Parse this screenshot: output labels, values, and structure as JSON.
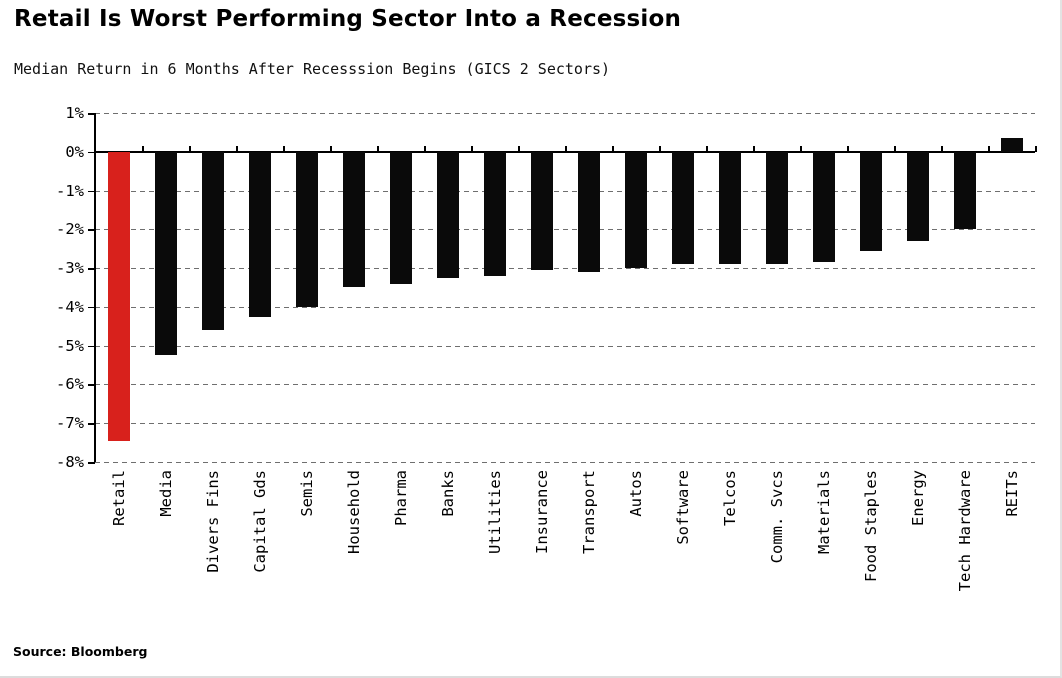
{
  "header": {
    "title": "Retail Is Worst Performing Sector Into a Recession",
    "subtitle": "Median Return in 6 Months After Recesssion Begins (GICS 2 Sectors)"
  },
  "footer": {
    "source": "Source: Bloomberg"
  },
  "chart_data": {
    "type": "bar",
    "title": "Retail Is Worst Performing Sector Into a Recession",
    "subtitle": "Median Return in 6 Months After Recesssion Begins (GICS 2 Sectors)",
    "categories": [
      "Retail",
      "Media",
      "Divers Fins",
      "Capital Gds",
      "Semis",
      "Household",
      "Pharma",
      "Banks",
      "Utilities",
      "Insurance",
      "Transport",
      "Autos",
      "Software",
      "Telcos",
      "Comm. Svcs",
      "Materials",
      "Food Staples",
      "Energy",
      "Tech Hardware",
      "REITs"
    ],
    "values": [
      -7.45,
      -5.25,
      -4.6,
      -4.25,
      -4.0,
      -3.5,
      -3.4,
      -3.25,
      -3.2,
      -3.05,
      -3.1,
      -3.0,
      -2.9,
      -2.9,
      -2.9,
      -2.85,
      -2.55,
      -2.3,
      -2.0,
      0.35
    ],
    "unit": "%",
    "xlabel": "",
    "ylabel": "",
    "ylim": [
      -8,
      1
    ],
    "y_ticks": [
      1,
      0,
      -1,
      -2,
      -3,
      -4,
      -5,
      -6,
      -7,
      -8
    ],
    "y_tick_labels": [
      "1%",
      "0%",
      "-1%",
      "-2%",
      "-3%",
      "-4%",
      "-5%",
      "-6%",
      "-7%",
      "-8%"
    ],
    "grid": "horizontal-dashed",
    "legend": "none",
    "highlight_category": "Retail",
    "colors": {
      "bar": "#0a0a0a",
      "highlight": "#d8211c",
      "grid": "#6f6f6f",
      "axis": "#000000"
    },
    "source": "Source: Bloomberg"
  }
}
